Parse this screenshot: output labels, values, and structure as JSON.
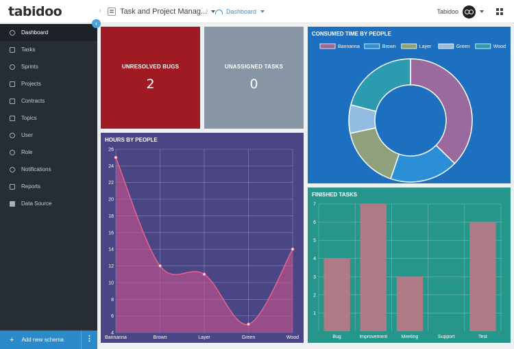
{
  "topbar": {
    "logo": "tabidoo",
    "app_name": "Task and Project Manag...",
    "dashboard_label": "Dashboard",
    "user_name": "Tabidoo"
  },
  "sidebar": {
    "items": [
      {
        "label": "Dashboard",
        "icon": "gauge-icon",
        "active": true
      },
      {
        "label": "Tasks",
        "icon": "document-icon"
      },
      {
        "label": "Sprints",
        "icon": "run-icon"
      },
      {
        "label": "Projects",
        "icon": "folder-icon"
      },
      {
        "label": "Contracts",
        "icon": "contract-icon"
      },
      {
        "label": "Topics",
        "icon": "list-icon"
      },
      {
        "label": "User",
        "icon": "user-icon"
      },
      {
        "label": "Role",
        "icon": "role-icon"
      },
      {
        "label": "Notifications",
        "icon": "eye-icon"
      },
      {
        "label": "Reports",
        "icon": "report-icon"
      },
      {
        "label": "Data Source",
        "icon": "database-icon"
      }
    ],
    "add_schema_label": "Add new schema",
    "accent": "#2b8ac9"
  },
  "kpis": {
    "unresolved_bugs": {
      "label": "UNRESOLVED BUGS",
      "value": "2",
      "color": "#a01a23"
    },
    "unassigned_tasks": {
      "label": "UNASSIGNED TASKS",
      "value": "0",
      "color": "#8895a4"
    }
  },
  "consumed_time": {
    "title": "CONSUMED TIME BY PEOPLE",
    "background": "#1d6fc0",
    "chart_data": {
      "type": "pie",
      "variant": "doughnut",
      "categories": [
        "Bannanna",
        "Brown",
        "Layer",
        "Green",
        "Wood"
      ],
      "values": [
        25,
        12,
        11,
        5,
        14
      ],
      "colors": [
        "#9a6a9e",
        "#2a8fd6",
        "#8fa07c",
        "#93bde0",
        "#2c9bb0"
      ],
      "legend": "top"
    }
  },
  "hours_by_people": {
    "title": "HOURS BY PEOPLE",
    "background": "#4a4585",
    "chart_data": {
      "type": "area",
      "categories": [
        "Bannanna",
        "Brown",
        "Layer",
        "Green",
        "Wood"
      ],
      "values": [
        25,
        12,
        11,
        5,
        14
      ],
      "ylim": [
        4,
        26
      ],
      "yticks": [
        4,
        6,
        8,
        10,
        12,
        14,
        16,
        18,
        20,
        22,
        24,
        26
      ],
      "grid": true,
      "line_color": "#e8638f"
    }
  },
  "finished_tasks": {
    "title": "FINISHED TASKS",
    "background": "#27968a",
    "chart_data": {
      "type": "bar",
      "categories": [
        "Bug",
        "Improvement",
        "Meeting",
        "Support",
        "Test"
      ],
      "values": [
        4,
        7,
        3,
        0,
        6
      ],
      "ylim": [
        0,
        7
      ],
      "yticks": [
        1,
        2,
        3,
        4,
        5,
        6,
        7
      ],
      "grid": true,
      "bar_color": "#b07a86"
    }
  }
}
